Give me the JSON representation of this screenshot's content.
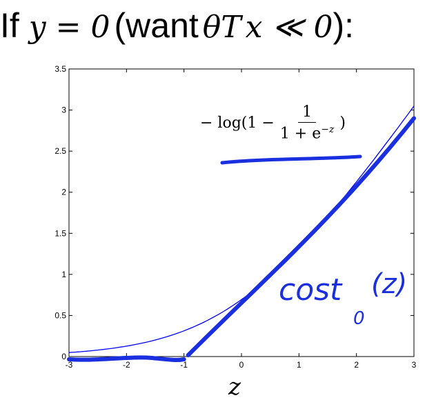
{
  "heading": {
    "prefix": "If",
    "condition": "y = 0",
    "paren_open": "(want",
    "theta": "θ",
    "superscript": "T",
    "relation": "x ≪ 0",
    "paren_close": "):"
  },
  "formula": {
    "lead": "− log(1 −",
    "numerator": "1",
    "denominator_base": "1 + e",
    "denominator_exp": "−z",
    "tail": ")"
  },
  "annotation": {
    "text": "cost",
    "subscript": "0",
    "argument": "(z)"
  },
  "colors": {
    "curve": "#0000ff",
    "ink": "#1a2fe0",
    "axes": "#000000"
  },
  "chart_data": {
    "type": "line",
    "title": "",
    "xlabel": "z",
    "ylabel": "",
    "xlim": [
      -3,
      3
    ],
    "ylim": [
      0,
      3.5
    ],
    "xticks": [
      -3,
      -2,
      -1,
      0,
      1,
      2,
      3
    ],
    "yticks": [
      0,
      0.5,
      1,
      1.5,
      2,
      2.5,
      3,
      3.5
    ],
    "grid": false,
    "series": [
      {
        "function": "-log(1 - 1/(1+e^(-z)))",
        "x": [
          -3,
          -2.5,
          -2,
          -1.5,
          -1,
          -0.5,
          0,
          0.5,
          1,
          1.5,
          2,
          2.5,
          3
        ],
        "y": [
          0.049,
          0.079,
          0.127,
          0.201,
          0.313,
          0.474,
          0.693,
          0.974,
          1.313,
          1.701,
          2.127,
          2.579,
          3.049
        ]
      },
      {
        "function": "cost0(z) hand-drawn",
        "x": [
          -3,
          -1,
          3
        ],
        "y": [
          0,
          0,
          2.9
        ]
      }
    ]
  }
}
